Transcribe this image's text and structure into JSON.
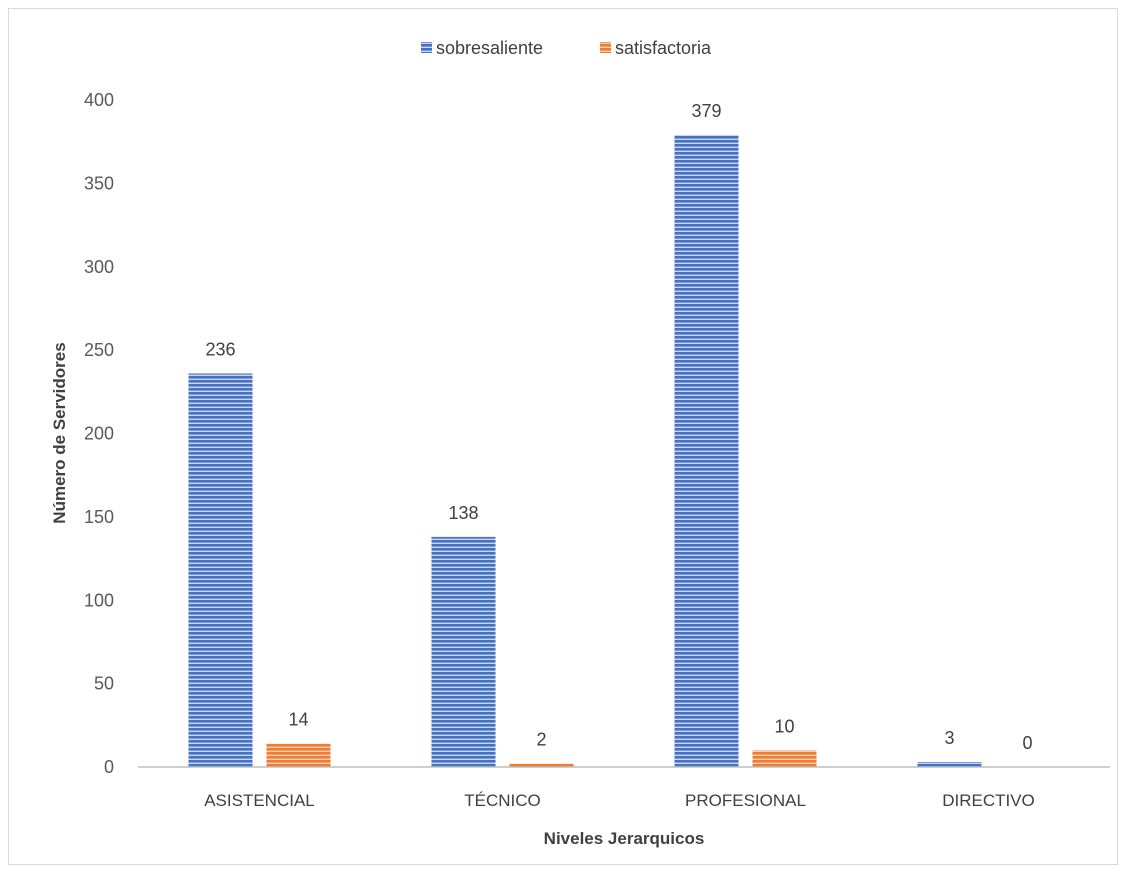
{
  "chart_data": {
    "type": "bar",
    "categories": [
      "ASISTENCIAL",
      "TÉCNICO",
      "PROFESIONAL",
      "DIRECTIVO"
    ],
    "series": [
      {
        "name": "sobresaliente",
        "values": [
          236,
          138,
          379,
          3
        ],
        "color": "#4472C4"
      },
      {
        "name": "satisfactoria",
        "values": [
          14,
          2,
          10,
          0
        ],
        "color": "#ED7D31"
      }
    ],
    "title": "",
    "xlabel": "Niveles Jerarquicos",
    "ylabel": "Número de Servidores",
    "ylim": [
      0,
      400
    ],
    "yticks": [
      0,
      50,
      100,
      150,
      200,
      250,
      300,
      350,
      400
    ],
    "grid": false,
    "legend": "top-center",
    "bar_fill": "horizontal-stripes"
  }
}
